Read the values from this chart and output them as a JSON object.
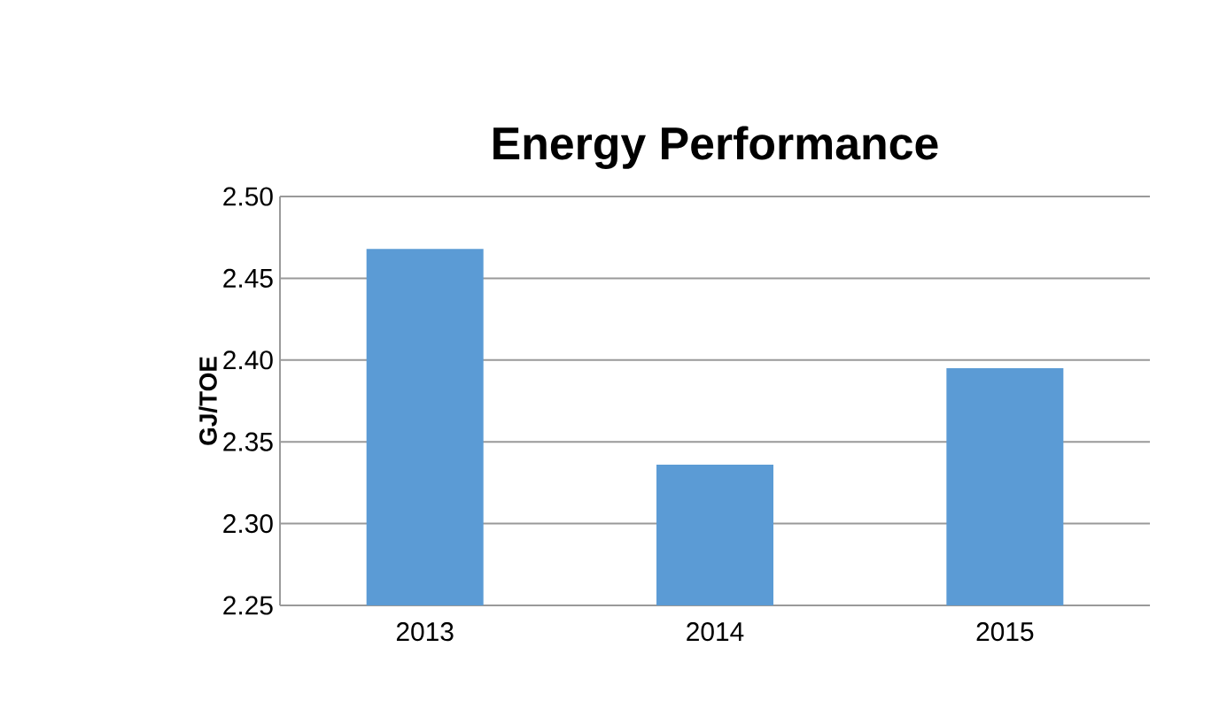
{
  "chart_data": {
    "type": "bar",
    "title": "Energy Performance",
    "ylabel": "GJ/TOE",
    "categories": [
      "2013",
      "2014",
      "2015"
    ],
    "values": [
      2.468,
      2.336,
      2.395
    ],
    "color": "#5b9bd5",
    "ylim": [
      2.25,
      2.5
    ],
    "yticks": [
      {
        "value": 2.25,
        "label": "2.25"
      },
      {
        "value": 2.3,
        "label": "2.30"
      },
      {
        "value": 2.35,
        "label": "2.35"
      },
      {
        "value": 2.4,
        "label": "2.40"
      },
      {
        "value": 2.45,
        "label": "2.45"
      },
      {
        "value": 2.5,
        "label": "2.50"
      }
    ],
    "grid": "y"
  }
}
